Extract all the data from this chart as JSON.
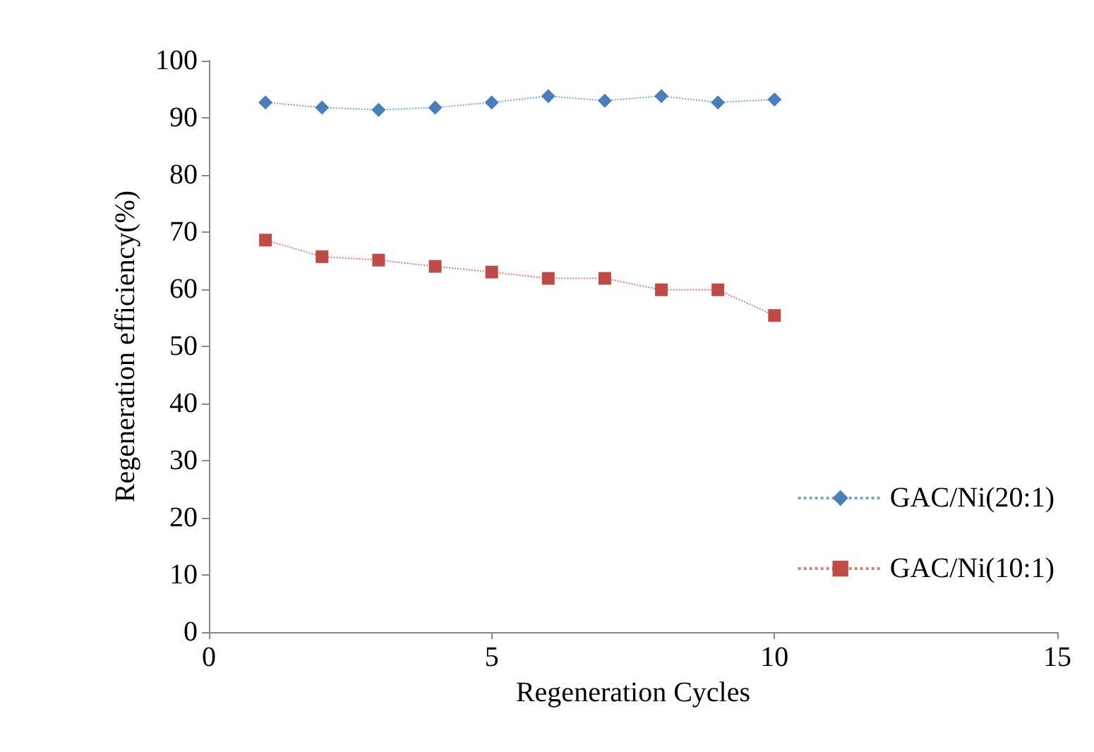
{
  "chart_data": {
    "type": "line",
    "xlabel": "Regeneration Cycles",
    "ylabel": "Regeneration efficiency(%)",
    "x": [
      1,
      2,
      3,
      4,
      5,
      6,
      7,
      8,
      9,
      10
    ],
    "series": [
      {
        "name": "GAC/Ni(20:1)",
        "color": "#4a7ebb",
        "marker": "diamond",
        "values": [
          92.7,
          91.8,
          91.4,
          91.8,
          92.7,
          93.8,
          93,
          93.8,
          92.7,
          93.2
        ]
      },
      {
        "name": "GAC/Ni(10:1)",
        "color": "#be4b48",
        "marker": "square",
        "values": [
          68.6,
          65.7,
          65.1,
          64,
          63,
          61.9,
          61.9,
          59.9,
          59.9,
          55.4
        ]
      }
    ],
    "xlim": [
      0,
      15
    ],
    "xticks": [
      0,
      5,
      10,
      15
    ],
    "ylim": [
      0,
      100
    ],
    "yticks": [
      0,
      10,
      20,
      30,
      40,
      50,
      60,
      70,
      80,
      90,
      100
    ],
    "grid": false,
    "legend": "right",
    "line_style": "dotted"
  }
}
